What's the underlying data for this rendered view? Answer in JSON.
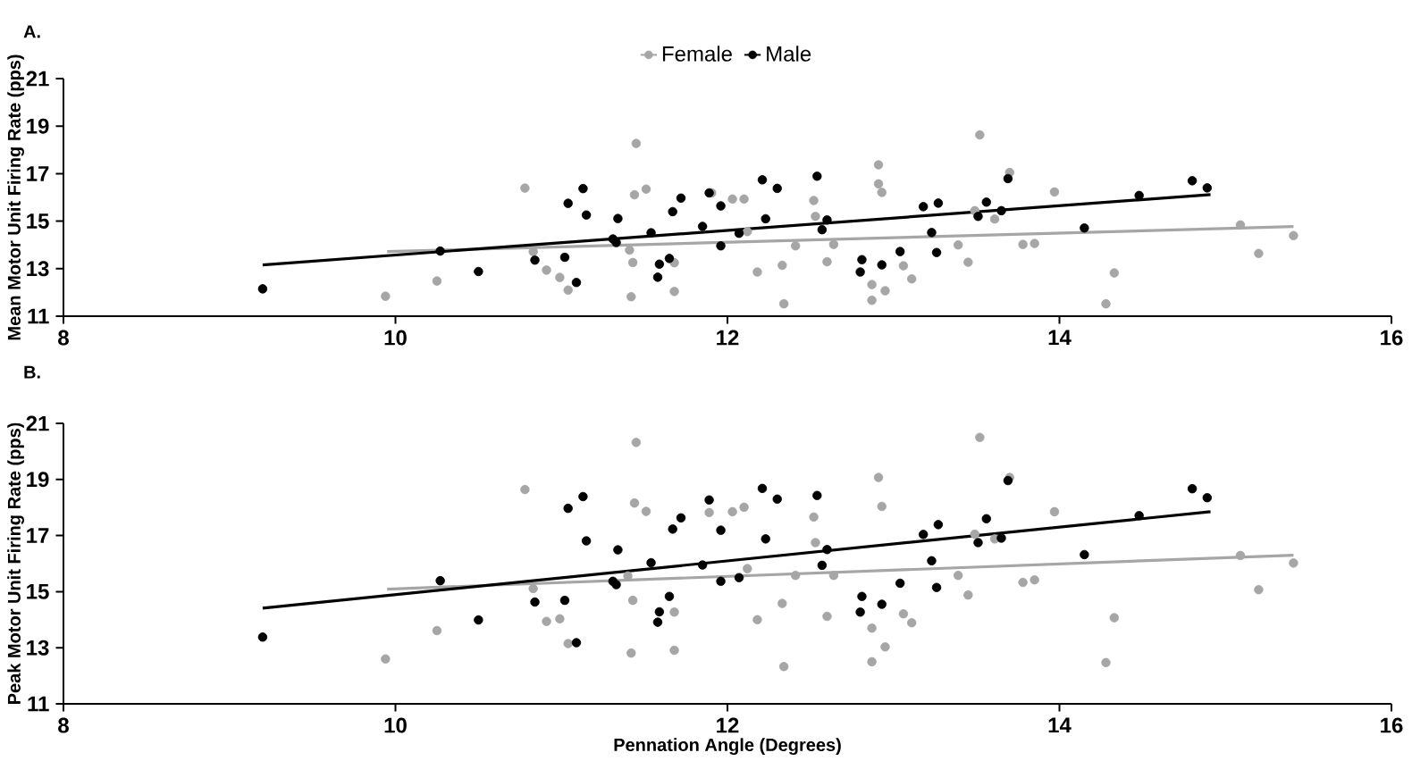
{
  "chart_data": [
    {
      "type": "scatter",
      "title": "A.",
      "ylabel": "Mean Motor Unit Firing Rate (pps)",
      "xlim": [
        8,
        16
      ],
      "ylim": [
        11,
        21
      ],
      "xticks": [
        8,
        10,
        12,
        14,
        16
      ],
      "yticks": [
        11,
        13,
        15,
        17,
        19,
        21
      ],
      "legend": "top",
      "grid": false,
      "series": [
        {
          "name": "Female",
          "marker": "circle",
          "color": "#a6a6a6",
          "x": [
            9.94,
            10.25,
            10.78,
            10.83,
            10.91,
            10.99,
            11.04,
            11.45,
            11.44,
            11.51,
            11.41,
            11.43,
            11.42,
            11.68,
            11.68,
            11.905,
            12.03,
            12.1,
            12.12,
            12.18,
            12.33,
            12.34,
            12.41,
            12.52,
            12.53,
            12.64,
            12.6,
            12.91,
            12.91,
            12.93,
            12.87,
            12.87,
            12.95,
            13.06,
            13.11,
            13.39,
            13.45,
            13.49,
            13.52,
            13.61,
            13.7,
            13.78,
            13.85,
            13.97,
            14.28,
            14.33,
            15.09,
            15.2,
            15.41
          ],
          "values": [
            11.84,
            12.48,
            16.39,
            13.72,
            12.94,
            12.63,
            12.1,
            18.27,
            16.11,
            16.35,
            13.78,
            13.26,
            11.82,
            13.25,
            12.04,
            16.19,
            15.93,
            15.93,
            14.56,
            12.86,
            13.14,
            11.52,
            13.96,
            15.87,
            15.2,
            14.02,
            13.29,
            17.37,
            16.57,
            16.21,
            12.33,
            11.67,
            12.07,
            13.12,
            12.57,
            14.0,
            13.27,
            15.44,
            18.63,
            15.09,
            17.05,
            14.02,
            14.06,
            16.23,
            11.52,
            12.82,
            14.84,
            13.64,
            14.39
          ]
        },
        {
          "name": "Male",
          "marker": "circle",
          "color": "#000000",
          "x": [
            9.2,
            10.27,
            10.5,
            10.84,
            11.02,
            11.04,
            11.09,
            11.13,
            11.15,
            11.34,
            11.31,
            11.33,
            11.54,
            11.59,
            11.58,
            11.65,
            11.67,
            11.72,
            11.85,
            11.89,
            11.96,
            11.96,
            12.07,
            12.21,
            12.23,
            12.3,
            12.54,
            12.6,
            12.57,
            12.81,
            12.8,
            12.93,
            13.04,
            13.18,
            13.27,
            13.23,
            13.26,
            13.51,
            13.56,
            13.65,
            13.69,
            14.15,
            14.48,
            14.8,
            14.89
          ],
          "values": [
            12.15,
            13.74,
            12.88,
            13.36,
            13.48,
            15.75,
            12.42,
            16.37,
            15.26,
            15.11,
            14.25,
            14.1,
            14.51,
            13.19,
            12.64,
            13.43,
            15.4,
            15.97,
            14.78,
            16.19,
            15.64,
            13.96,
            14.49,
            16.74,
            15.1,
            16.38,
            16.89,
            15.05,
            14.64,
            13.38,
            12.86,
            13.16,
            13.72,
            15.61,
            15.76,
            14.52,
            13.68,
            15.2,
            15.8,
            15.44,
            16.79,
            14.71,
            16.08,
            16.7,
            16.4
          ]
        },
        {
          "type": "line",
          "color": "#a6a6a6",
          "x": [
            9.95,
            15.41
          ],
          "values": [
            13.72,
            14.77
          ]
        },
        {
          "type": "line",
          "color": "#000000",
          "x": [
            9.2,
            14.91
          ],
          "values": [
            13.16,
            16.12
          ]
        }
      ]
    },
    {
      "type": "scatter",
      "title": "B.",
      "xlabel": "Pennation Angle (Degrees)",
      "ylabel": "Peak Motor Unit Firing Rate (pps)",
      "xlim": [
        8,
        16
      ],
      "ylim": [
        11,
        21
      ],
      "xticks": [
        8,
        10,
        12,
        14,
        16
      ],
      "yticks": [
        11,
        13,
        15,
        17,
        19,
        21
      ],
      "grid": false,
      "series": [
        {
          "marker": "circle",
          "color": "#a6a6a6",
          "x": [
            9.94,
            10.25,
            10.78,
            10.83,
            10.91,
            10.99,
            11.04,
            11.45,
            11.44,
            11.51,
            11.4,
            11.43,
            11.42,
            11.68,
            11.68,
            11.89,
            12.03,
            12.1,
            12.12,
            12.18,
            12.33,
            12.34,
            12.41,
            12.52,
            12.53,
            12.64,
            12.6,
            12.91,
            12.93,
            12.87,
            12.87,
            12.95,
            13.06,
            13.11,
            13.39,
            13.45,
            13.49,
            13.52,
            13.61,
            13.7,
            13.78,
            13.85,
            13.97,
            14.28,
            14.33,
            15.09,
            15.2,
            15.41
          ],
          "values": [
            12.6,
            13.61,
            18.64,
            15.11,
            13.94,
            14.03,
            13.15,
            20.32,
            18.16,
            17.86,
            15.56,
            14.69,
            12.81,
            14.27,
            12.91,
            17.82,
            17.85,
            18.01,
            15.82,
            14.0,
            14.58,
            12.33,
            15.58,
            17.66,
            16.75,
            15.58,
            14.12,
            19.07,
            18.04,
            13.7,
            12.5,
            13.03,
            14.21,
            13.89,
            15.58,
            14.88,
            17.05,
            20.5,
            16.88,
            19.07,
            15.33,
            15.42,
            17.85,
            12.47,
            14.07,
            16.29,
            15.07,
            16.02
          ]
        },
        {
          "marker": "circle",
          "color": "#000000",
          "x": [
            9.2,
            10.27,
            10.5,
            10.84,
            11.02,
            11.04,
            11.09,
            11.13,
            11.15,
            11.34,
            11.31,
            11.33,
            11.54,
            11.59,
            11.58,
            11.65,
            11.67,
            11.72,
            11.85,
            11.89,
            11.96,
            11.96,
            12.07,
            12.21,
            12.23,
            12.3,
            12.54,
            12.6,
            12.57,
            12.81,
            12.8,
            12.93,
            13.04,
            13.18,
            13.27,
            13.23,
            13.26,
            13.51,
            13.56,
            13.65,
            13.69,
            14.15,
            14.48,
            14.8,
            14.89
          ],
          "values": [
            13.38,
            15.39,
            13.99,
            14.63,
            14.69,
            17.97,
            13.18,
            18.39,
            16.81,
            16.49,
            15.37,
            15.25,
            16.03,
            14.28,
            13.91,
            14.83,
            17.23,
            17.63,
            15.95,
            18.27,
            17.19,
            15.37,
            15.5,
            18.68,
            16.88,
            18.3,
            18.43,
            16.5,
            15.94,
            14.83,
            14.27,
            14.55,
            15.3,
            17.04,
            17.39,
            16.1,
            15.15,
            16.75,
            17.6,
            16.91,
            18.96,
            16.32,
            17.71,
            18.67,
            18.35
          ]
        },
        {
          "type": "line",
          "color": "#a6a6a6",
          "x": [
            9.95,
            15.41
          ],
          "values": [
            15.09,
            16.3
          ]
        },
        {
          "type": "line",
          "color": "#000000",
          "x": [
            9.2,
            14.91
          ],
          "values": [
            14.41,
            17.85
          ]
        }
      ]
    }
  ]
}
